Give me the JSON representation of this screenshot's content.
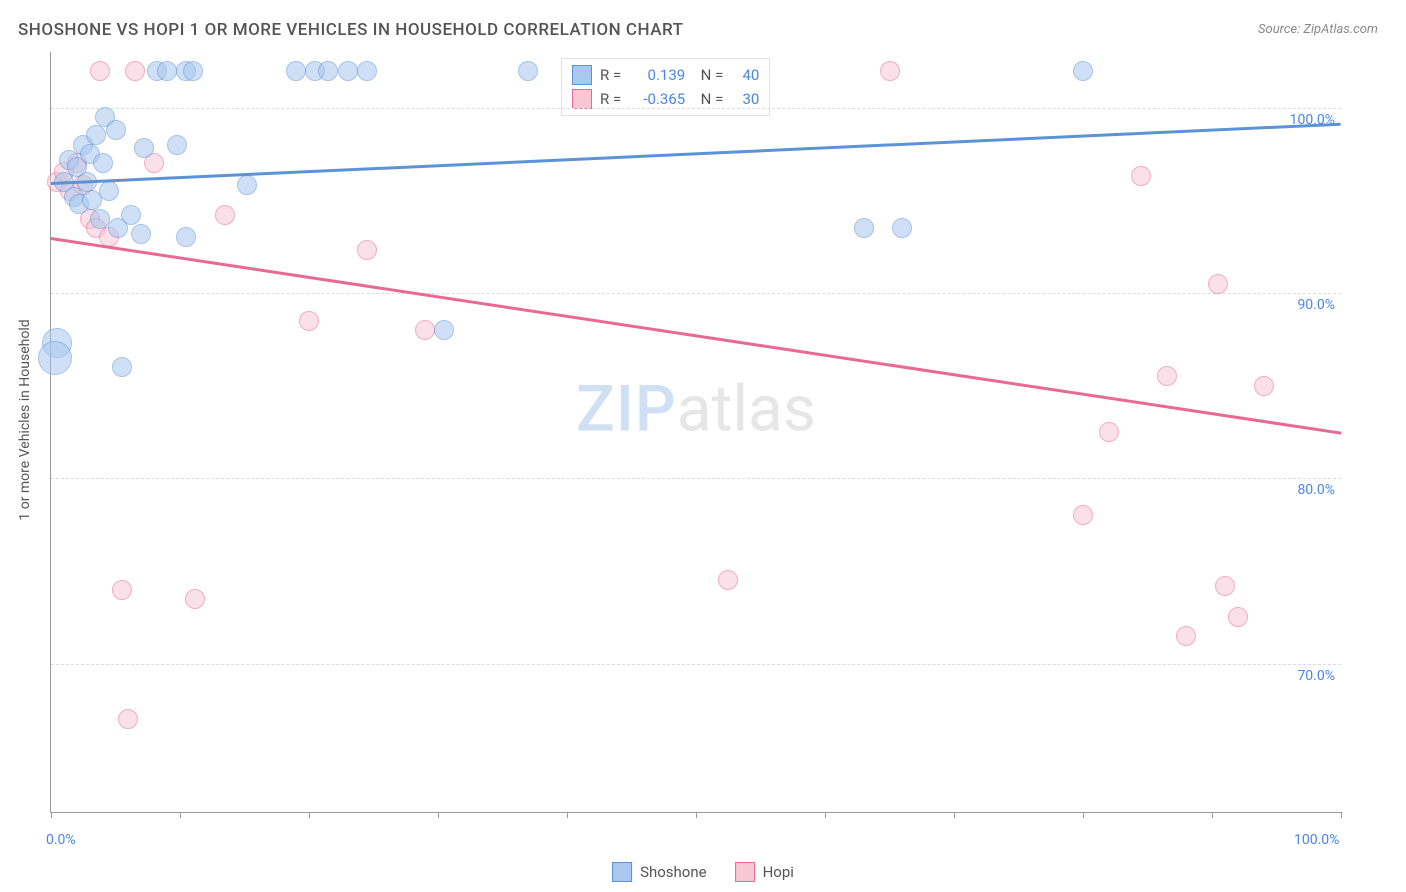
{
  "title": "SHOSHONE VS HOPI 1 OR MORE VEHICLES IN HOUSEHOLD CORRELATION CHART",
  "source": "Source: ZipAtlas.com",
  "ylabel": "1 or more Vehicles in Household",
  "watermark": {
    "part1": "ZIP",
    "part2": "atlas"
  },
  "chart": {
    "type": "scatter",
    "background_color": "#ffffff",
    "grid_color": "#dcdcdc",
    "axis_color": "#999999",
    "label_color": "#555555",
    "value_color": "#4a86e8",
    "xlim": [
      0,
      100
    ],
    "ylim": [
      62,
      103
    ],
    "yticks": [
      70,
      80,
      90,
      100
    ],
    "ytick_labels": [
      "70.0%",
      "80.0%",
      "90.0%",
      "100.0%"
    ],
    "xticks": [
      0,
      10,
      20,
      30,
      40,
      50,
      60,
      70,
      80,
      90,
      100
    ],
    "x_axis_labels": {
      "min": "0.0%",
      "max": "100.0%"
    },
    "marker_radius": 9,
    "marker_opacity": 0.55,
    "line_width": 2.5,
    "series": [
      {
        "name": "Shoshone",
        "color_fill": "#a8c8ef",
        "color_stroke": "#5b93d6",
        "R": "0.139",
        "N": "40",
        "trend": {
          "x1": 0,
          "y1": 96.0,
          "x2": 100,
          "y2": 99.2
        },
        "points": [
          {
            "x": 1.0,
            "y": 96.0,
            "r": 9
          },
          {
            "x": 1.4,
            "y": 97.2,
            "r": 9
          },
          {
            "x": 1.8,
            "y": 95.2,
            "r": 9
          },
          {
            "x": 2.0,
            "y": 96.8,
            "r": 9
          },
          {
            "x": 2.2,
            "y": 94.8,
            "r": 9
          },
          {
            "x": 2.5,
            "y": 98.0,
            "r": 9
          },
          {
            "x": 2.8,
            "y": 96.0,
            "r": 9
          },
          {
            "x": 3.0,
            "y": 97.5,
            "r": 9
          },
          {
            "x": 3.2,
            "y": 95.0,
            "r": 9
          },
          {
            "x": 3.5,
            "y": 98.5,
            "r": 9
          },
          {
            "x": 3.8,
            "y": 94.0,
            "r": 9
          },
          {
            "x": 4.0,
            "y": 97.0,
            "r": 9
          },
          {
            "x": 4.2,
            "y": 99.5,
            "r": 9
          },
          {
            "x": 4.5,
            "y": 95.5,
            "r": 9
          },
          {
            "x": 5.0,
            "y": 98.8,
            "r": 9
          },
          {
            "x": 5.2,
            "y": 93.5,
            "r": 9
          },
          {
            "x": 5.5,
            "y": 86.0,
            "r": 9
          },
          {
            "x": 6.2,
            "y": 94.2,
            "r": 9
          },
          {
            "x": 7.0,
            "y": 93.2,
            "r": 9
          },
          {
            "x": 7.2,
            "y": 97.8,
            "r": 9
          },
          {
            "x": 8.2,
            "y": 102.0,
            "r": 9
          },
          {
            "x": 9.0,
            "y": 102.0,
            "r": 9
          },
          {
            "x": 9.8,
            "y": 98.0,
            "r": 9
          },
          {
            "x": 10.5,
            "y": 93.0,
            "r": 9
          },
          {
            "x": 10.5,
            "y": 102.0,
            "r": 9
          },
          {
            "x": 11.0,
            "y": 102.0,
            "r": 9
          },
          {
            "x": 15.2,
            "y": 95.8,
            "r": 9
          },
          {
            "x": 19.0,
            "y": 102.0,
            "r": 9
          },
          {
            "x": 20.5,
            "y": 102.0,
            "r": 9
          },
          {
            "x": 21.5,
            "y": 102.0,
            "r": 9
          },
          {
            "x": 23.0,
            "y": 102.0,
            "r": 9
          },
          {
            "x": 24.5,
            "y": 102.0,
            "r": 9
          },
          {
            "x": 30.5,
            "y": 88.0,
            "r": 9
          },
          {
            "x": 37.0,
            "y": 102.0,
            "r": 9
          },
          {
            "x": 63.0,
            "y": 93.5,
            "r": 9
          },
          {
            "x": 66.0,
            "y": 93.5,
            "r": 9
          },
          {
            "x": 80.0,
            "y": 102.0,
            "r": 9
          },
          {
            "x": 0.5,
            "y": 87.3,
            "r": 14
          },
          {
            "x": 0.3,
            "y": 86.5,
            "r": 16
          }
        ]
      },
      {
        "name": "Hopi",
        "color_fill": "#f7c7d6",
        "color_stroke": "#e86993",
        "R": "-0.365",
        "N": "30",
        "trend": {
          "x1": 0,
          "y1": 93.0,
          "x2": 100,
          "y2": 82.5
        },
        "points": [
          {
            "x": 0.5,
            "y": 96.0,
            "r": 9
          },
          {
            "x": 1.0,
            "y": 96.5,
            "r": 9
          },
          {
            "x": 1.5,
            "y": 95.5,
            "r": 9
          },
          {
            "x": 2.0,
            "y": 97.0,
            "r": 9
          },
          {
            "x": 2.5,
            "y": 95.8,
            "r": 9
          },
          {
            "x": 3.0,
            "y": 94.0,
            "r": 9
          },
          {
            "x": 3.5,
            "y": 93.5,
            "r": 9
          },
          {
            "x": 3.8,
            "y": 102.0,
            "r": 9
          },
          {
            "x": 4.5,
            "y": 93.0,
            "r": 9
          },
          {
            "x": 5.5,
            "y": 74.0,
            "r": 9
          },
          {
            "x": 6.5,
            "y": 102.0,
            "r": 9
          },
          {
            "x": 6.0,
            "y": 67.0,
            "r": 9
          },
          {
            "x": 8.0,
            "y": 97.0,
            "r": 9
          },
          {
            "x": 11.2,
            "y": 73.5,
            "r": 9
          },
          {
            "x": 13.5,
            "y": 94.2,
            "r": 9
          },
          {
            "x": 20.0,
            "y": 88.5,
            "r": 9
          },
          {
            "x": 24.5,
            "y": 92.3,
            "r": 9
          },
          {
            "x": 29.0,
            "y": 88.0,
            "r": 9
          },
          {
            "x": 52.5,
            "y": 74.5,
            "r": 9
          },
          {
            "x": 65.0,
            "y": 102.0,
            "r": 9
          },
          {
            "x": 80.0,
            "y": 78.0,
            "r": 9
          },
          {
            "x": 82.0,
            "y": 82.5,
            "r": 9
          },
          {
            "x": 84.5,
            "y": 96.3,
            "r": 9
          },
          {
            "x": 86.5,
            "y": 85.5,
            "r": 9
          },
          {
            "x": 88.0,
            "y": 71.5,
            "r": 9
          },
          {
            "x": 90.5,
            "y": 90.5,
            "r": 9
          },
          {
            "x": 91.0,
            "y": 74.2,
            "r": 9
          },
          {
            "x": 92.0,
            "y": 72.5,
            "r": 9
          },
          {
            "x": 94.0,
            "y": 85.0,
            "r": 9
          }
        ]
      }
    ]
  }
}
